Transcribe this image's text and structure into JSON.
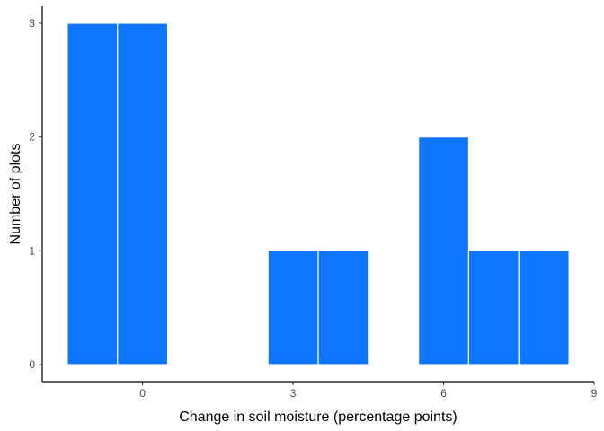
{
  "chart_data": {
    "type": "histogram",
    "x_label": "Change in soil moisture (percentage points)",
    "y_label": "Number of plots",
    "bins": [
      -1.5,
      -0.5,
      0.5,
      1.5,
      2.5,
      3.5,
      4.5,
      5.5,
      6.5,
      7.5,
      8.5
    ],
    "counts": [
      3,
      3,
      0,
      0,
      1,
      1,
      0,
      2,
      1,
      1
    ],
    "color": "#0f75ff",
    "xlim": [
      -2,
      9
    ],
    "xticks": [
      0,
      3,
      6,
      9
    ],
    "ylim": [
      -0.15,
      3.15
    ],
    "yticks": [
      0,
      1,
      2,
      3
    ]
  }
}
